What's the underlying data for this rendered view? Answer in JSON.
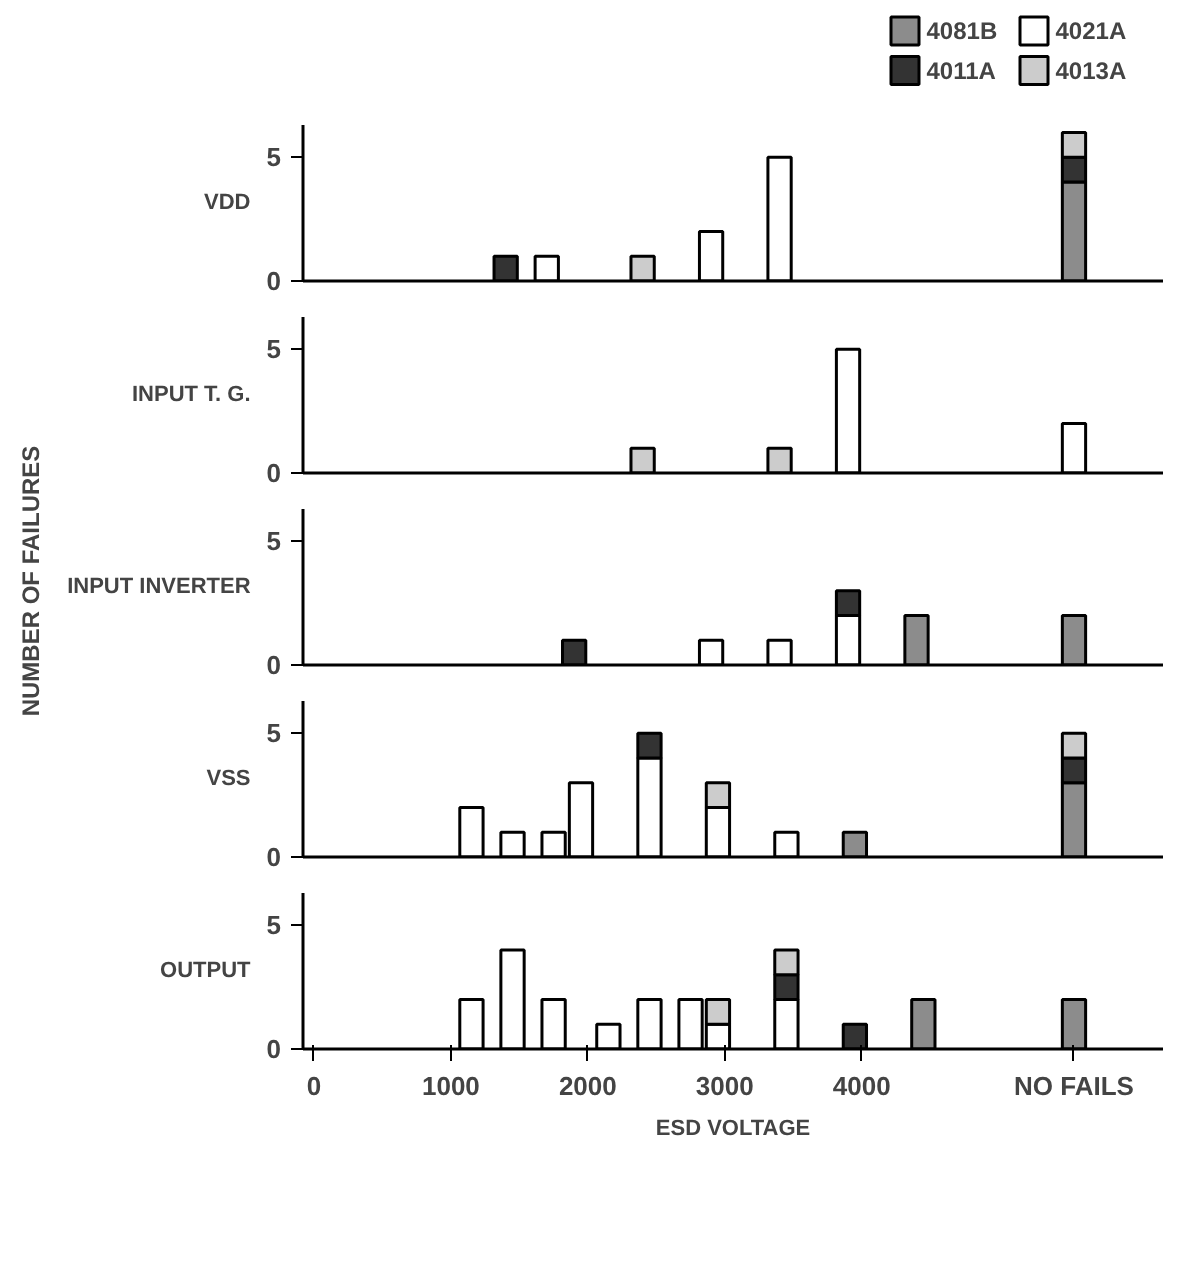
{
  "chart_data": [
    {
      "type": "bar",
      "stacked": true,
      "ylabel": "VDD",
      "legend": "top right",
      "grid": false,
      "tick_labels": "y",
      "xlim": [
        -80,
        6200
      ],
      "ylim": [
        0,
        6.3
      ],
      "yticks": [
        0,
        5
      ],
      "x": [
        1400,
        1700,
        2400,
        2900,
        3400,
        5550
      ],
      "series": [
        {
          "name": "4081B",
          "color": "#8c8c8c",
          "values": [
            null,
            null,
            null,
            null,
            null,
            4
          ]
        },
        {
          "name": "4021A",
          "color": "#ffffff",
          "values": [
            null,
            1,
            null,
            2,
            5,
            null
          ]
        },
        {
          "name": "4011A",
          "color": "#333333",
          "values": [
            1,
            null,
            null,
            null,
            null,
            1
          ]
        },
        {
          "name": "4013A",
          "color": "#cccccc",
          "values": [
            null,
            null,
            1,
            null,
            null,
            1
          ]
        }
      ]
    },
    {
      "type": "bar",
      "stacked": true,
      "ylabel": "INPUT T. G.",
      "grid": false,
      "tick_labels": "y",
      "xlim": [
        -80,
        6200
      ],
      "ylim": [
        0,
        6.3
      ],
      "yticks": [
        0,
        5
      ],
      "x": [
        2400,
        3400,
        3900,
        5550
      ],
      "series": [
        {
          "color": "#ffffff",
          "values": [
            null,
            null,
            5,
            2
          ]
        },
        {
          "color": "#cccccc",
          "values": [
            1,
            1,
            null,
            null
          ]
        }
      ]
    },
    {
      "type": "bar",
      "stacked": true,
      "ylabel": "INPUT INVERTER",
      "annotations": [
        "NUMBER OF FAILURES"
      ],
      "grid": false,
      "tick_labels": "y",
      "xlim": [
        -80,
        6200
      ],
      "ylim": [
        0,
        6.3
      ],
      "yticks": [
        0,
        5
      ],
      "x": [
        1900,
        2900,
        3400,
        3900,
        4400,
        5550
      ],
      "series": [
        {
          "color": "#8c8c8c",
          "values": [
            null,
            null,
            null,
            null,
            2,
            2
          ]
        },
        {
          "color": "#ffffff",
          "values": [
            null,
            1,
            1,
            2,
            null,
            null
          ]
        },
        {
          "color": "#333333",
          "values": [
            1,
            null,
            null,
            1,
            null,
            null
          ]
        }
      ]
    },
    {
      "type": "bar",
      "stacked": true,
      "ylabel": "VSS",
      "grid": false,
      "tick_labels": "y",
      "xlim": [
        -80,
        6200
      ],
      "ylim": [
        0,
        6.3
      ],
      "yticks": [
        0,
        5
      ],
      "x": [
        1150,
        1450,
        1750,
        1950,
        2450,
        2950,
        3450,
        3950,
        5550
      ],
      "series": [
        {
          "color": "#8c8c8c",
          "values": [
            null,
            null,
            null,
            null,
            null,
            null,
            null,
            1,
            3
          ]
        },
        {
          "color": "#ffffff",
          "values": [
            2,
            1,
            1,
            3,
            4,
            2,
            1,
            null,
            null
          ]
        },
        {
          "color": "#333333",
          "values": [
            null,
            null,
            null,
            null,
            1,
            null,
            null,
            null,
            1
          ]
        },
        {
          "color": "#cccccc",
          "values": [
            null,
            null,
            null,
            null,
            null,
            1,
            null,
            null,
            1
          ]
        }
      ]
    },
    {
      "type": "bar",
      "stacked": true,
      "ylabel": "OUTPUT",
      "xlabel": "ESD VOLTAGE",
      "grid": false,
      "xlim": [
        -80,
        6200
      ],
      "xticks": [
        0,
        1000,
        2000,
        3000,
        4000,
        {
          "value": 5550,
          "label": "NO FAILS"
        }
      ],
      "ylim": [
        0,
        6.3
      ],
      "yticks": [
        0,
        5
      ],
      "x": [
        1150,
        1450,
        1750,
        2150,
        2450,
        2750,
        2950,
        3450,
        3950,
        4450,
        5550
      ],
      "series": [
        {
          "color": "#8c8c8c",
          "values": [
            null,
            null,
            null,
            null,
            null,
            null,
            null,
            null,
            null,
            2,
            2
          ]
        },
        {
          "color": "#ffffff",
          "values": [
            2,
            4,
            2,
            1,
            2,
            2,
            1,
            2,
            null,
            null,
            null
          ]
        },
        {
          "color": "#333333",
          "values": [
            null,
            null,
            null,
            null,
            null,
            null,
            null,
            1,
            1,
            null,
            null
          ]
        },
        {
          "color": "#cccccc",
          "values": [
            null,
            null,
            null,
            null,
            null,
            null,
            1,
            1,
            null,
            null,
            null
          ]
        }
      ]
    }
  ]
}
